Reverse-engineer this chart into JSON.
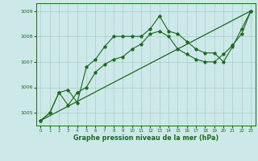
{
  "xlabel": "Graphe pression niveau de la mer (hPa)",
  "background_color": "#cce8e8",
  "grid_color": "#aacccc",
  "line_color": "#1a6b1a",
  "marker_color": "#1a6b1a",
  "ylim": [
    1004.5,
    1009.3
  ],
  "xlim": [
    -0.5,
    23.5
  ],
  "yticks": [
    1005,
    1006,
    1007,
    1008,
    1009
  ],
  "xticks": [
    0,
    1,
    2,
    3,
    4,
    5,
    6,
    7,
    8,
    9,
    10,
    11,
    12,
    13,
    14,
    15,
    16,
    17,
    18,
    19,
    20,
    21,
    22,
    23
  ],
  "series1_x": [
    0,
    1,
    2,
    3,
    4,
    5,
    6,
    7,
    8,
    9,
    10,
    11,
    12,
    13,
    14,
    15,
    16,
    17,
    18,
    19,
    20,
    21,
    22,
    23
  ],
  "series1_y": [
    1004.7,
    1005.0,
    1005.8,
    1005.9,
    1005.4,
    1006.8,
    1007.1,
    1007.6,
    1008.0,
    1008.0,
    1008.0,
    1008.0,
    1008.3,
    1008.8,
    1008.2,
    1008.1,
    1007.8,
    1007.5,
    1007.35,
    1007.35,
    1007.0,
    1007.6,
    1008.3,
    1009.0
  ],
  "series2_x": [
    0,
    1,
    2,
    3,
    4,
    5,
    6,
    7,
    8,
    9,
    10,
    11,
    12,
    13,
    14,
    15,
    16,
    17,
    18,
    19,
    20,
    21,
    22,
    23
  ],
  "series2_y": [
    1004.7,
    1005.0,
    1005.8,
    1005.3,
    1005.8,
    1006.0,
    1006.6,
    1006.9,
    1007.1,
    1007.2,
    1007.5,
    1007.7,
    1008.1,
    1008.2,
    1008.0,
    1007.5,
    1007.3,
    1007.1,
    1007.0,
    1007.0,
    1007.3,
    1007.65,
    1008.1,
    1009.0
  ],
  "trend_x": [
    0,
    23
  ],
  "trend_y": [
    1004.7,
    1009.0
  ],
  "figwidth": 3.2,
  "figheight": 2.0,
  "dpi": 100
}
